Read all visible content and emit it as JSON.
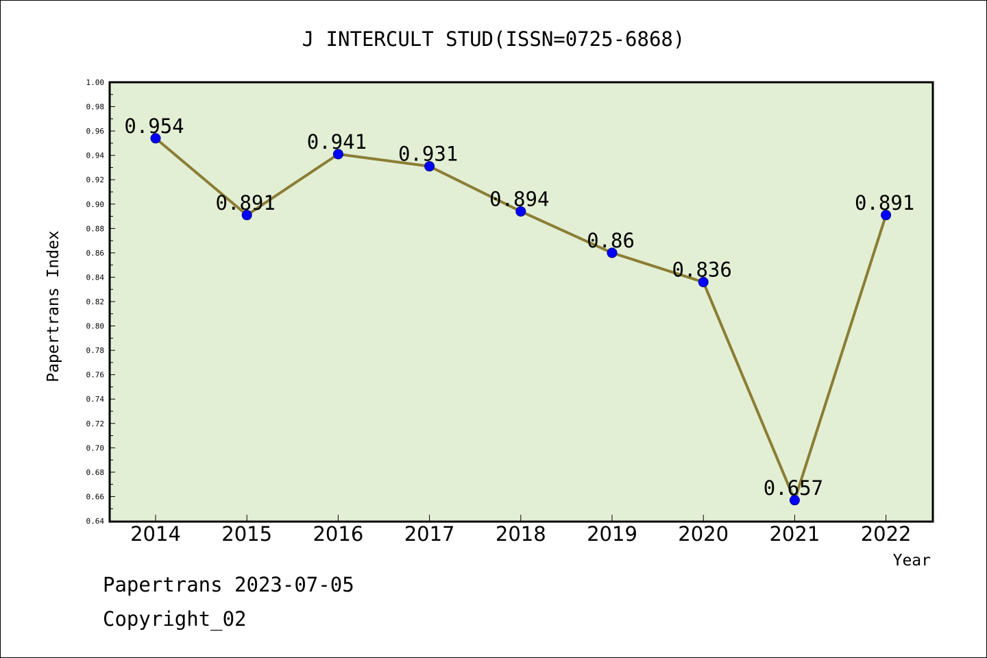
{
  "chart_data": {
    "type": "line",
    "title": "J INTERCULT STUD(ISSN=0725-6868)",
    "xlabel": "Year",
    "ylabel": "Papertrans Index",
    "categories": [
      "2014",
      "2015",
      "2016",
      "2017",
      "2018",
      "2019",
      "2020",
      "2021",
      "2022"
    ],
    "series": [
      {
        "values": [
          0.954,
          0.891,
          0.941,
          0.931,
          0.894,
          0.86,
          0.836,
          0.657,
          0.891
        ]
      }
    ],
    "data_labels": [
      "0.954",
      "0.891",
      "0.941",
      "0.931",
      "0.894",
      "0.86",
      "0.836",
      "0.657",
      "0.891"
    ],
    "ylim": [
      0.64,
      1.0
    ],
    "y_ticks": [
      "0.64",
      "0.66",
      "0.68",
      "0.70",
      "0.72",
      "0.74",
      "0.76",
      "0.78",
      "0.80",
      "0.82",
      "0.84",
      "0.86",
      "0.88",
      "0.90",
      "0.92",
      "0.94",
      "0.96",
      "0.98",
      "1.00"
    ],
    "grid": false,
    "colors": {
      "plot_background": "#e2efd4",
      "line": "#8b7d35",
      "marker": "#0000ff"
    }
  },
  "footer": {
    "source_line": "Papertrans 2023-07-05",
    "copyright": "Copyright_02"
  }
}
